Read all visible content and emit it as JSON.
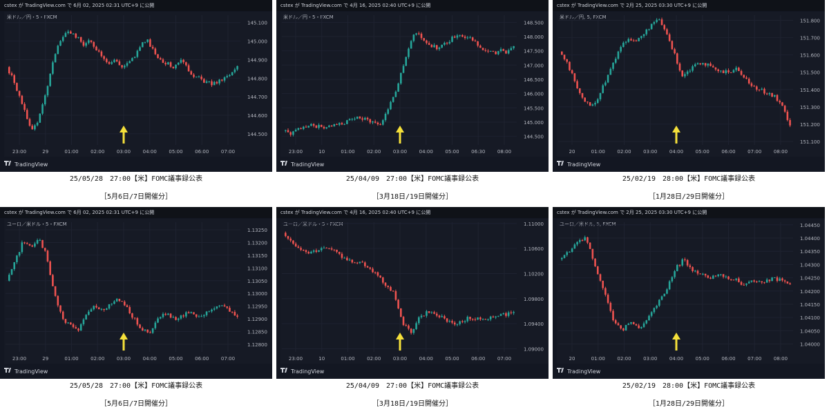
{
  "colors": {
    "up": "#26a69a",
    "down": "#ef5350",
    "arrow": "#f5e03a",
    "bg": "#131722",
    "grid": "#1e2230",
    "axis_text": "#b2b5be"
  },
  "panels": [
    {
      "header": "cstex が TradingView.com で 6月 02, 2025 02:31 UTC+9 に公開",
      "symbol": "米ドル／円・5・FXCM",
      "footer": "TradingView",
      "caption1": "25/05/28　27:00【米】FOMC議事録公表",
      "caption2": "［5月6日/7日開催分］",
      "arrow_label": "03:00",
      "chart_data": {
        "type": "candlestick",
        "y_ticks": [
          "145.100",
          "145.000",
          "144.900",
          "144.800",
          "144.700",
          "144.600",
          "144.500"
        ],
        "ylim": [
          144.44,
          145.14
        ],
        "x_ticks": [
          "23:00",
          "29",
          "01:00",
          "02:00",
          "03:00",
          "04:00",
          "05:00",
          "06:00",
          "07:00"
        ],
        "path": [
          144.86,
          144.8,
          144.7,
          144.6,
          144.52,
          144.58,
          144.7,
          144.86,
          144.98,
          145.03,
          145.05,
          145.02,
          144.98,
          145.0,
          144.96,
          144.92,
          144.88,
          144.9,
          144.86,
          144.88,
          144.92,
          144.98,
          145.0,
          144.94,
          144.9,
          144.88,
          144.86,
          144.9,
          144.86,
          144.82,
          144.8,
          144.78,
          144.77,
          144.78,
          144.8,
          144.82,
          144.86
        ]
      }
    },
    {
      "header": "cstex が TradingView.com で 4月 16, 2025 02:40 UTC+9 に公開",
      "symbol": "米ドル／円・5・FXCM",
      "footer": "TradingView",
      "caption1": "25/04/09　27:00【米】FOMC議事録公表",
      "caption2": "［3月18日/19日開催分］",
      "arrow_label": "03:00",
      "chart_data": {
        "type": "candlestick",
        "y_ticks": [
          "148.500",
          "148.000",
          "147.500",
          "147.000",
          "146.500",
          "146.000",
          "145.500",
          "145.000",
          "144.500"
        ],
        "ylim": [
          144.2,
          148.75
        ],
        "x_ticks": [
          "23:00",
          "10",
          "01:00",
          "02:00",
          "03:00",
          "04:00",
          "05:00",
          "06:30",
          "08:00"
        ],
        "path": [
          144.7,
          144.6,
          144.7,
          144.8,
          144.9,
          144.85,
          144.8,
          144.85,
          144.9,
          145.0,
          145.1,
          145.15,
          145.1,
          145.0,
          144.9,
          145.5,
          146.0,
          146.8,
          147.6,
          148.2,
          147.9,
          147.7,
          147.6,
          147.7,
          147.9,
          148.1,
          148.0,
          147.9,
          147.7,
          147.5,
          147.4,
          147.5,
          147.45,
          147.6
        ]
      }
    },
    {
      "header": "cstex が TradingView.com で 2月 25, 2025 03:30 UTC+9 に公開",
      "symbol": "米ドル／円, 5, FXCM",
      "footer": "TradingView",
      "caption1": "25/02/19　28:00【米】FOMC議事録公表",
      "caption2": "［1月28日/29日開催分］",
      "arrow_label": "04:00",
      "chart_data": {
        "type": "candlestick",
        "y_ticks": [
          "151.800",
          "151.700",
          "151.600",
          "151.500",
          "151.400",
          "151.300",
          "151.200",
          "151.100"
        ],
        "ylim": [
          151.08,
          151.83
        ],
        "x_ticks": [
          "20",
          "01:00",
          "02:00",
          "03:00",
          "04:00",
          "05:00",
          "06:00",
          "07:00",
          "08:00"
        ],
        "path": [
          151.62,
          151.55,
          151.45,
          151.35,
          151.3,
          151.35,
          151.45,
          151.55,
          151.65,
          151.7,
          151.68,
          151.72,
          151.78,
          151.8,
          151.72,
          151.6,
          151.48,
          151.52,
          151.56,
          151.55,
          151.52,
          151.5,
          151.5,
          151.52,
          151.48,
          151.42,
          151.4,
          151.38,
          151.36,
          151.3,
          151.2
        ]
      }
    },
    {
      "header": "cstex が TradingView.com で 6月 02, 2025 02:31 UTC+9 に公開",
      "symbol": "ユーロ／米ドル・5・FXCM",
      "footer": "TradingView",
      "caption1": "25/05/28　27:00【米】FOMC議事録公表",
      "caption2": "［5月6日/7日開催分］",
      "arrow_label": "03:00",
      "chart_data": {
        "type": "candlestick",
        "y_ticks": [
          "1.13250",
          "1.13200",
          "1.13150",
          "1.13100",
          "1.13050",
          "1.13000",
          "1.12950",
          "1.12900",
          "1.12850",
          "1.12800"
        ],
        "ylim": [
          1.1277,
          1.1328
        ],
        "x_ticks": [
          "23:00",
          "29",
          "01:00",
          "02:00",
          "03:00",
          "04:00",
          "05:00",
          "06:00",
          "07:00"
        ],
        "path": [
          1.1305,
          1.1312,
          1.132,
          1.1318,
          1.1322,
          1.1315,
          1.13,
          1.129,
          1.1288,
          1.1285,
          1.1292,
          1.1295,
          1.1293,
          1.1296,
          1.1298,
          1.1295,
          1.129,
          1.1286,
          1.1284,
          1.129,
          1.1292,
          1.129,
          1.1291,
          1.1293,
          1.1291,
          1.1292,
          1.1294,
          1.1296,
          1.1293,
          1.1291
        ]
      }
    },
    {
      "header": "cstex が TradingView.com で 4月 16, 2025 02:40 UTC+9 に公開",
      "symbol": "ユーロ／米ドル・5・FXCM",
      "footer": "TradingView",
      "caption1": "25/04/09　27:00【米】FOMC議事録公表",
      "caption2": "［3月18日/19日開催分］",
      "arrow_label": "03:00",
      "chart_data": {
        "type": "candlestick",
        "y_ticks": [
          "1.11000",
          "1.10600",
          "1.10200",
          "1.09800",
          "1.09400",
          "1.09000"
        ],
        "ylim": [
          1.0895,
          1.1102
        ],
        "x_ticks": [
          "23:00",
          "10",
          "01:00",
          "02:00",
          "03:00",
          "04:00",
          "05:00",
          "06:00",
          "07:00"
        ],
        "path": [
          1.1085,
          1.107,
          1.106,
          1.1055,
          1.1058,
          1.1062,
          1.1055,
          1.1045,
          1.104,
          1.1038,
          1.103,
          1.102,
          1.1,
          1.099,
          1.094,
          1.0925,
          1.095,
          1.096,
          1.0955,
          1.0945,
          1.094,
          1.0945,
          1.095,
          1.0948,
          1.095,
          1.0952,
          1.0955,
          1.0958
        ]
      }
    },
    {
      "header": "cstex が TradingView.com で 2月 25, 2025 03:30 UTC+9 に公開",
      "symbol": "ユーロ／米ドル, 5, FXCM",
      "footer": "TradingView",
      "caption1": "25/02/19　28:00【米】FOMC議事録公表",
      "caption2": "［1月28日/29日開催分］",
      "arrow_label": "04:00",
      "chart_data": {
        "type": "candlestick",
        "y_ticks": [
          "1.04450",
          "1.04400",
          "1.04350",
          "1.04300",
          "1.04250",
          "1.04200",
          "1.04150",
          "1.04100",
          "1.04050",
          "1.04000"
        ],
        "ylim": [
          1.0397,
          1.0446
        ],
        "x_ticks": [
          "20",
          "01:00",
          "02:00",
          "03:00",
          "04:00",
          "05:00",
          "06:00",
          "07:00",
          "08:00"
        ],
        "path": [
          1.0432,
          1.0435,
          1.0438,
          1.044,
          1.043,
          1.042,
          1.041,
          1.0405,
          1.0408,
          1.0406,
          1.041,
          1.0415,
          1.042,
          1.0428,
          1.0432,
          1.0428,
          1.0426,
          1.0425,
          1.0426,
          1.0425,
          1.0424,
          1.0422,
          1.0424,
          1.0423,
          1.0425,
          1.0424,
          1.0422
        ]
      }
    }
  ]
}
